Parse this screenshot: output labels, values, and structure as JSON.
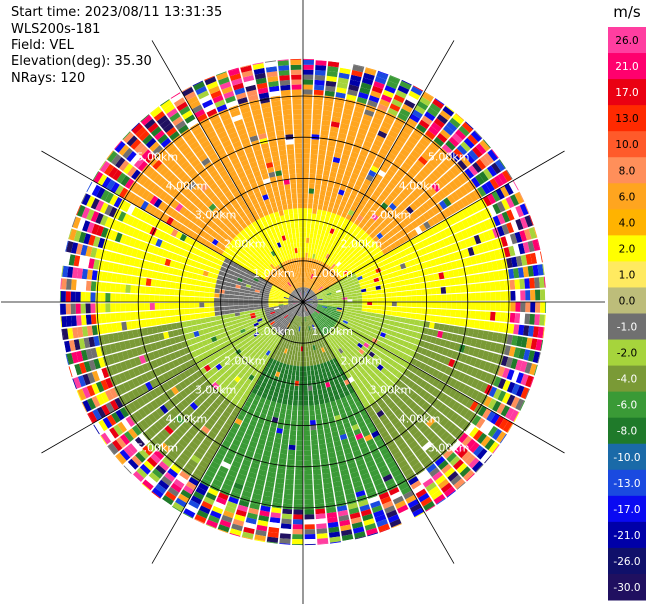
{
  "header": {
    "start_time": "Start time: 2023/08/11 13:31:35",
    "instrument": "WLS200s-181",
    "field": "Field: VEL",
    "elevation": "Elevation(deg): 35.30",
    "nrays": "NRays: 120"
  },
  "colorbar": {
    "unit": "m/s",
    "ticks": [
      "26.0",
      "21.0",
      "17.0",
      "13.0",
      "10.0",
      "8.0",
      "6.0",
      "4.0",
      "2.0",
      "1.0",
      "0.0",
      "-1.0",
      "-2.0",
      "-4.0",
      "-6.0",
      "-8.0",
      "-10.0",
      "-13.0",
      "-17.0",
      "-21.0",
      "-26.0",
      "-30.0"
    ],
    "colors": [
      "#ff3ea0",
      "#ff006e",
      "#ea0012",
      "#ff2a00",
      "#ff5a2a",
      "#ff8f5a",
      "#ffa51f",
      "#ffb300",
      "#ffff00",
      "#ffea60",
      "#bdbd7a",
      "#707070",
      "#a6d43c",
      "#7a9a36",
      "#3a9a36",
      "#1f7a2a",
      "#1a6aa8",
      "#1a4ae0",
      "#0a0af2",
      "#0000a8",
      "#10106a",
      "#201060"
    ]
  },
  "chart_data": {
    "type": "polar_ppi",
    "field": "VEL",
    "unit": "m/s",
    "nrays": 120,
    "elevation_deg": 35.3,
    "range_rings_km": [
      1.0,
      2.0,
      3.0,
      4.0,
      5.0
    ],
    "ring_labels": [
      "1.00km",
      "2.00km",
      "3.00km",
      "4.00km",
      "5.00km"
    ],
    "max_range_km": 5.9,
    "spokes_deg": [
      0,
      30,
      60,
      90,
      120,
      150,
      180,
      210,
      240,
      270,
      300,
      330
    ],
    "colorbar_range": [
      -30.0,
      26.0
    ],
    "regions": [
      {
        "description": "north sector, outer",
        "velocity": 4.0
      },
      {
        "description": "north sector, middle",
        "velocity": 2.0
      },
      {
        "description": "west-east band near center",
        "velocity": 0.0
      },
      {
        "description": "south-east sector",
        "velocity": -2.0
      },
      {
        "description": "south sector",
        "velocity": -6.0
      },
      {
        "description": "beyond ~5 km",
        "velocity": "noise"
      }
    ]
  }
}
